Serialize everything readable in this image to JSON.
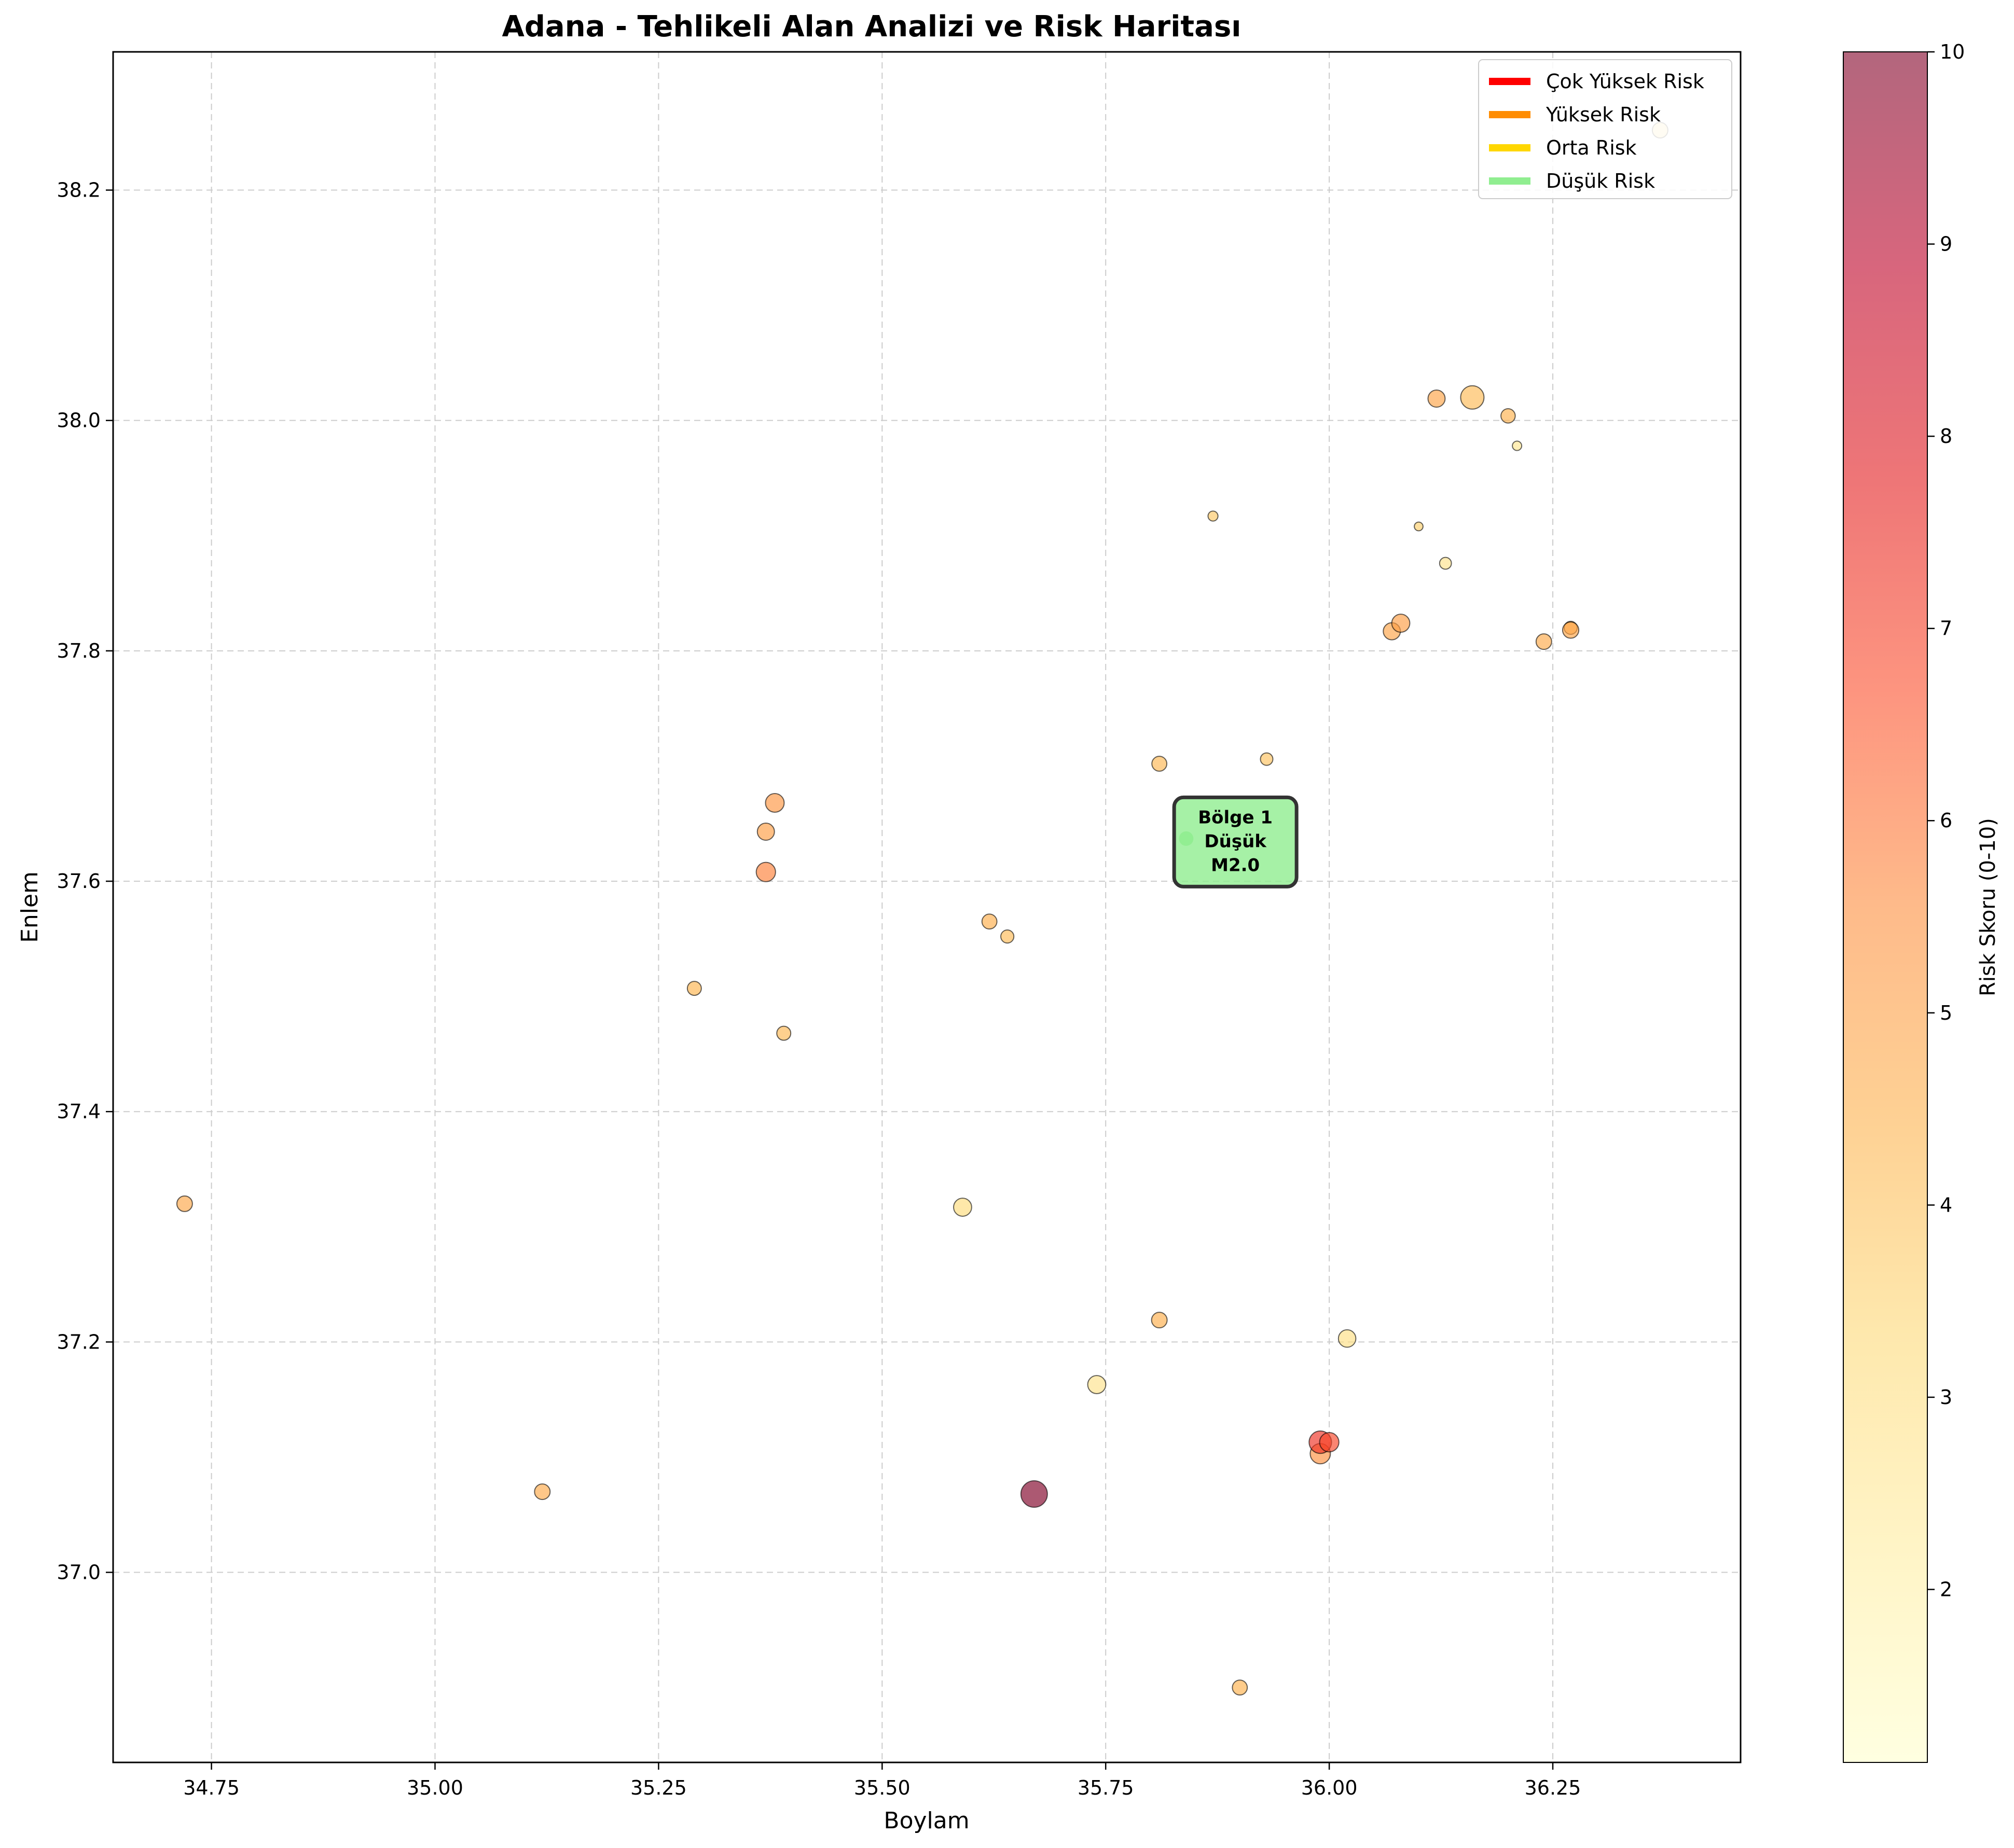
{
  "chart_data": {
    "type": "scatter",
    "title": "Adana - Tehlikeli Alan Analizi ve Risk Haritası",
    "xlabel": "Boylam",
    "ylabel": "Enlem",
    "xlim": [
      34.64,
      36.46
    ],
    "ylim": [
      36.835,
      38.32
    ],
    "xticks": [
      "34.75",
      "35.00",
      "35.25",
      "35.50",
      "35.75",
      "36.00",
      "36.25"
    ],
    "yticks": [
      "37.0",
      "37.2",
      "37.4",
      "37.6",
      "37.8",
      "38.0",
      "38.2"
    ],
    "grid": true,
    "legend_position": "top-right",
    "legend": [
      {
        "label": "Çok Yüksek Risk",
        "color": "#ff0000"
      },
      {
        "label": "Yüksek Risk",
        "color": "#ff8c00"
      },
      {
        "label": "Orta Risk",
        "color": "#ffd700"
      },
      {
        "label": "Düşük Risk",
        "color": "#90ee90"
      }
    ],
    "colorbar": {
      "label": "Risk Skoru (0-10)",
      "range": [
        1.1,
        10
      ],
      "ticks": [
        "2",
        "3",
        "4",
        "5",
        "6",
        "7",
        "8",
        "9",
        "10"
      ]
    },
    "points": [
      {
        "x": 34.72,
        "y": 37.32,
        "risk": 4.8,
        "size": 5
      },
      {
        "x": 35.12,
        "y": 37.07,
        "risk": 4.7,
        "size": 5
      },
      {
        "x": 35.29,
        "y": 37.507,
        "risk": 4.4,
        "size": 4.5
      },
      {
        "x": 35.39,
        "y": 37.468,
        "risk": 4.3,
        "size": 4.5
      },
      {
        "x": 35.38,
        "y": 37.668,
        "risk": 5.3,
        "size": 6
      },
      {
        "x": 35.37,
        "y": 37.643,
        "risk": 5.1,
        "size": 5.5
      },
      {
        "x": 35.37,
        "y": 37.608,
        "risk": 5.8,
        "size": 6.2
      },
      {
        "x": 35.59,
        "y": 37.317,
        "risk": 3.2,
        "size": 5.8
      },
      {
        "x": 35.62,
        "y": 37.565,
        "risk": 4.6,
        "size": 4.8
      },
      {
        "x": 35.64,
        "y": 37.552,
        "risk": 4.2,
        "size": 4.2
      },
      {
        "x": 35.67,
        "y": 37.068,
        "risk": 10.0,
        "size": 8.5
      },
      {
        "x": 35.74,
        "y": 37.163,
        "risk": 2.8,
        "size": 5.8
      },
      {
        "x": 35.81,
        "y": 37.219,
        "risk": 4.6,
        "size": 5
      },
      {
        "x": 35.81,
        "y": 37.702,
        "risk": 4.3,
        "size": 4.8
      },
      {
        "x": 35.87,
        "y": 37.917,
        "risk": 3.8,
        "size": 3.2
      },
      {
        "x": 35.93,
        "y": 37.706,
        "risk": 4.0,
        "size": 4
      },
      {
        "x": 35.9,
        "y": 36.9,
        "risk": 4.5,
        "size": 4.8
      },
      {
        "x": 35.99,
        "y": 37.103,
        "risk": 5.5,
        "size": 6.5
      },
      {
        "x": 35.99,
        "y": 37.113,
        "risk": 7.3,
        "size": 7.2
      },
      {
        "x": 36.0,
        "y": 37.113,
        "risk": 6.9,
        "size": 6.2
      },
      {
        "x": 36.02,
        "y": 37.203,
        "risk": 3.0,
        "size": 5.6
      },
      {
        "x": 36.07,
        "y": 37.817,
        "risk": 4.9,
        "size": 5.5
      },
      {
        "x": 36.08,
        "y": 37.824,
        "risk": 5.1,
        "size": 5.8
      },
      {
        "x": 36.1,
        "y": 37.908,
        "risk": 3.6,
        "size": 2.8
      },
      {
        "x": 36.12,
        "y": 38.019,
        "risk": 4.9,
        "size": 5.5
      },
      {
        "x": 36.13,
        "y": 37.876,
        "risk": 2.8,
        "size": 3.8
      },
      {
        "x": 36.16,
        "y": 38.02,
        "risk": 4.2,
        "size": 7.5
      },
      {
        "x": 36.2,
        "y": 38.004,
        "risk": 4.5,
        "size": 4.6
      },
      {
        "x": 36.21,
        "y": 37.978,
        "risk": 2.6,
        "size": 3
      },
      {
        "x": 36.24,
        "y": 37.808,
        "risk": 4.7,
        "size": 5
      },
      {
        "x": 36.27,
        "y": 37.82,
        "risk": 4.5,
        "size": 4.2
      },
      {
        "x": 36.27,
        "y": 37.818,
        "risk": 4.9,
        "size": 5.2
      },
      {
        "x": 36.37,
        "y": 38.252,
        "risk": 3.1,
        "size": 5
      }
    ],
    "annotation": {
      "x": 35.895,
      "y": 37.63,
      "lines": [
        "Bölge 1",
        "Düşük",
        "M2.0"
      ],
      "box_color": "#90ee90",
      "marker": {
        "x": 35.84,
        "y": 37.637,
        "color": "#90ee90"
      }
    }
  }
}
